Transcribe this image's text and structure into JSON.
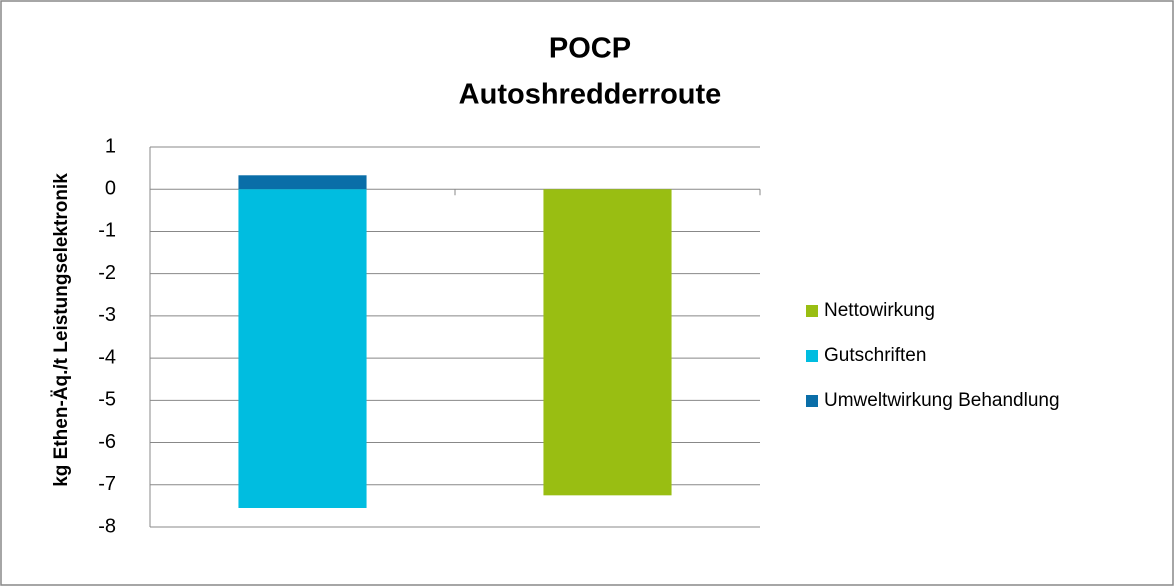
{
  "chart_data": {
    "type": "stacked_bar",
    "title": "POCP",
    "subtitle": "Autoshredderroute",
    "y_label": "kg Ethen-Äq./t Leistungselektronik",
    "categories": [
      null,
      null
    ],
    "series": [
      {
        "name": "Nettowirkung",
        "color": "#99be12",
        "values": [
          null,
          -7.25
        ]
      },
      {
        "name": "Gutschriften",
        "color": "#00bde0",
        "values": [
          -7.55,
          null
        ]
      },
      {
        "name": "Umweltwirkung Behandlung",
        "color": "#0a6ea8",
        "values": [
          0.33,
          null
        ]
      }
    ],
    "ylim": [
      -8,
      1
    ],
    "yticks": [
      -8,
      -7,
      -6,
      -5,
      -4,
      -3,
      -2,
      -1,
      0,
      1
    ],
    "grid": true,
    "legend": "right"
  }
}
